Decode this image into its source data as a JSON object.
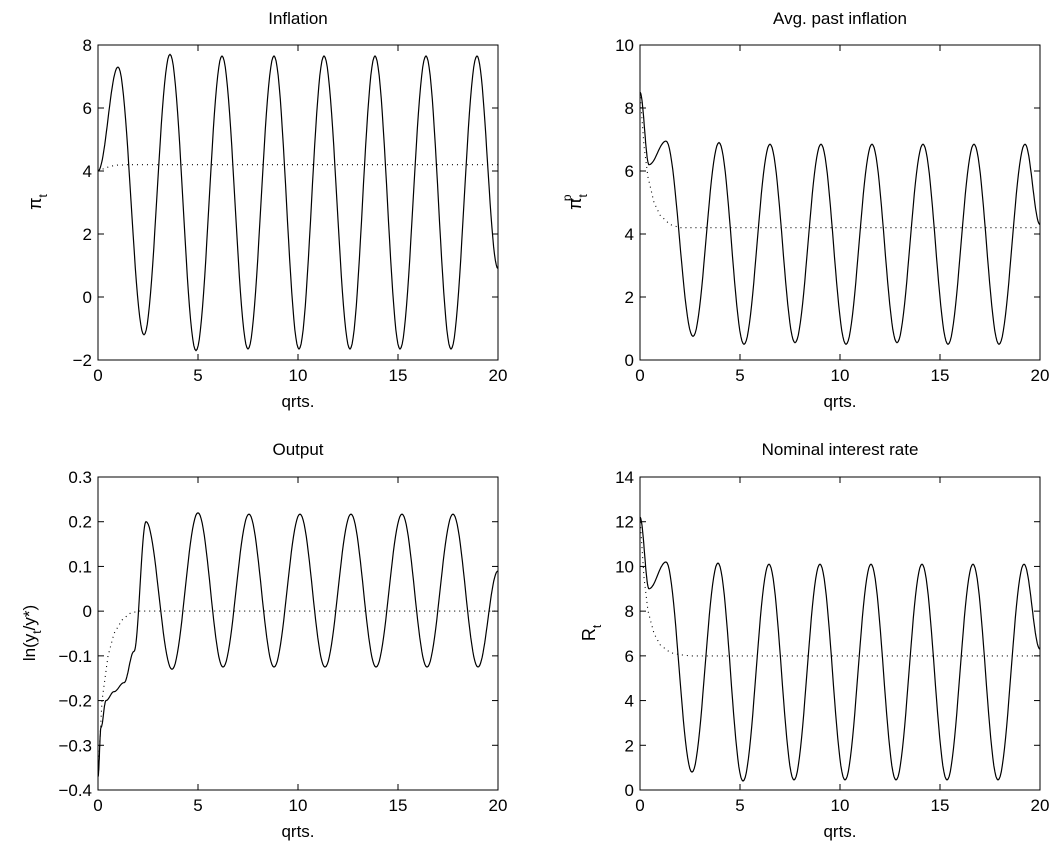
{
  "chart_data": [
    {
      "type": "line",
      "title": "Inflation",
      "xlabel": "qrts.",
      "ylabel": {
        "base": "π",
        "sub": "t"
      },
      "xlim": [
        0,
        20
      ],
      "ylim": [
        -2,
        8
      ],
      "xticks": [
        0,
        5,
        10,
        15,
        20
      ],
      "yticks": [
        -2,
        0,
        2,
        4,
        6,
        8
      ],
      "grid": false,
      "series": [
        {
          "style": "solid",
          "x": [
            0,
            1.0,
            2.3,
            3.6,
            4.9,
            6.2,
            7.5,
            8.8,
            10.05,
            11.3,
            12.6,
            13.85,
            15.1,
            16.4,
            17.65,
            18.95,
            20
          ],
          "y": [
            4.0,
            7.3,
            -1.2,
            7.7,
            -1.7,
            7.65,
            -1.65,
            7.65,
            -1.65,
            7.65,
            -1.65,
            7.65,
            -1.65,
            7.65,
            -1.65,
            7.65,
            0.9
          ]
        },
        {
          "style": "dotted",
          "x": [
            0,
            0.2,
            0.4,
            0.6,
            0.8,
            1.0,
            1.5,
            20
          ],
          "y": [
            4.0,
            4.05,
            4.1,
            4.15,
            4.17,
            4.19,
            4.2,
            4.2
          ]
        }
      ]
    },
    {
      "type": "line",
      "title": "Avg. past inflation",
      "xlabel": "qrts.",
      "ylabel": {
        "base": "π",
        "sub": "t",
        "sup": "p"
      },
      "xlim": [
        0,
        20
      ],
      "ylim": [
        0,
        10
      ],
      "xticks": [
        0,
        5,
        10,
        15,
        20
      ],
      "yticks": [
        0,
        2,
        4,
        6,
        8,
        10
      ],
      "grid": false,
      "series": [
        {
          "style": "solid",
          "x": [
            0,
            0.45,
            1.3,
            2.65,
            3.95,
            5.2,
            6.5,
            7.75,
            9.05,
            10.3,
            11.6,
            12.85,
            14.15,
            15.4,
            16.7,
            17.95,
            19.25,
            20
          ],
          "y": [
            8.5,
            6.2,
            6.95,
            0.75,
            6.9,
            0.5,
            6.85,
            0.55,
            6.85,
            0.5,
            6.85,
            0.55,
            6.85,
            0.5,
            6.85,
            0.5,
            6.85,
            4.3
          ]
        },
        {
          "style": "dotted",
          "x": [
            0,
            0.2,
            0.4,
            0.7,
            1.0,
            1.5,
            2.0,
            20
          ],
          "y": [
            8.5,
            6.8,
            5.8,
            5.0,
            4.6,
            4.3,
            4.2,
            4.2
          ]
        }
      ]
    },
    {
      "type": "line",
      "title": "Output",
      "xlabel": "qrts.",
      "ylabel": {
        "pre": "ln(y",
        "sub": "t",
        "post": "/y*)"
      },
      "xlim": [
        0,
        20
      ],
      "ylim": [
        -0.4,
        0.3
      ],
      "xticks": [
        0,
        5,
        10,
        15,
        20
      ],
      "yticks": [
        -0.4,
        -0.3,
        -0.2,
        -0.1,
        0,
        0.1,
        0.2,
        0.3
      ],
      "grid": false,
      "series": [
        {
          "style": "solid",
          "x": [
            0,
            0.15,
            0.4,
            0.8,
            1.3,
            1.8,
            2.4,
            3.7,
            5.0,
            6.25,
            7.55,
            8.8,
            10.1,
            11.35,
            12.65,
            13.9,
            15.2,
            16.45,
            17.75,
            19.0,
            20
          ],
          "y": [
            -0.37,
            -0.26,
            -0.2,
            -0.18,
            -0.16,
            -0.09,
            0.2,
            -0.13,
            0.22,
            -0.125,
            0.217,
            -0.125,
            0.217,
            -0.125,
            0.217,
            -0.125,
            0.217,
            -0.125,
            0.217,
            -0.125,
            0.09
          ]
        },
        {
          "style": "dotted",
          "x": [
            0,
            0.2,
            0.5,
            0.8,
            1.2,
            1.6,
            2.0,
            3.0,
            20
          ],
          "y": [
            -0.37,
            -0.2,
            -0.1,
            -0.05,
            -0.02,
            -0.005,
            0,
            0,
            0
          ]
        }
      ]
    },
    {
      "type": "line",
      "title": "Nominal interest rate",
      "xlabel": "qrts.",
      "ylabel": {
        "base": "R",
        "sub": "t"
      },
      "xlim": [
        0,
        20
      ],
      "ylim": [
        0,
        14
      ],
      "xticks": [
        0,
        5,
        10,
        15,
        20
      ],
      "yticks": [
        0,
        2,
        4,
        6,
        8,
        10,
        12,
        14
      ],
      "grid": false,
      "series": [
        {
          "style": "solid",
          "x": [
            0,
            0.45,
            1.3,
            2.6,
            3.9,
            5.15,
            6.45,
            7.7,
            9.0,
            10.25,
            11.55,
            12.8,
            14.1,
            15.35,
            16.65,
            17.9,
            19.2,
            20
          ],
          "y": [
            12.2,
            9.0,
            10.2,
            0.8,
            10.15,
            0.4,
            10.1,
            0.45,
            10.1,
            0.45,
            10.1,
            0.45,
            10.1,
            0.45,
            10.1,
            0.45,
            10.1,
            6.3
          ]
        },
        {
          "style": "dotted",
          "x": [
            0,
            0.2,
            0.4,
            0.7,
            1.0,
            1.5,
            2.0,
            2.5,
            20
          ],
          "y": [
            12.2,
            9.5,
            8.0,
            7.0,
            6.5,
            6.15,
            6.05,
            6.0,
            6.0
          ]
        }
      ]
    }
  ]
}
